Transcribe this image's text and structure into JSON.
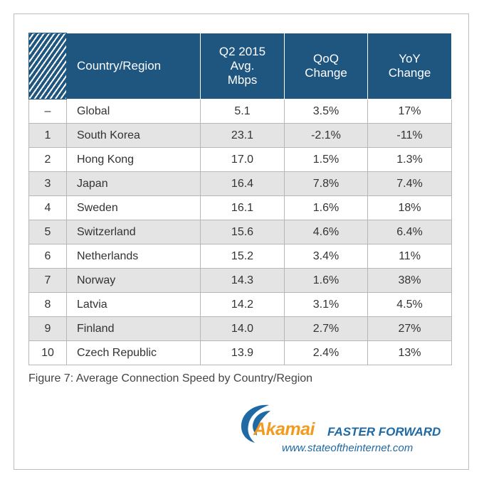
{
  "table": {
    "headers": {
      "country": "Country/Region",
      "speed": [
        "Q2 2015",
        "Avg.",
        "Mbps"
      ],
      "qoq": [
        "QoQ",
        "Change"
      ],
      "yoy": [
        "YoY",
        "Change"
      ]
    },
    "rows": [
      {
        "rank": "–",
        "country": "Global",
        "speed": "5.1",
        "qoq": "3.5%",
        "yoy": "17%"
      },
      {
        "rank": "1",
        "country": "South Korea",
        "speed": "23.1",
        "qoq": "-2.1%",
        "yoy": "-11%"
      },
      {
        "rank": "2",
        "country": "Hong Kong",
        "speed": "17.0",
        "qoq": "1.5%",
        "yoy": "1.3%"
      },
      {
        "rank": "3",
        "country": "Japan",
        "speed": "16.4",
        "qoq": "7.8%",
        "yoy": "7.4%"
      },
      {
        "rank": "4",
        "country": "Sweden",
        "speed": "16.1",
        "qoq": "1.6%",
        "yoy": "18%"
      },
      {
        "rank": "5",
        "country": "Switzerland",
        "speed": "15.6",
        "qoq": "4.6%",
        "yoy": "6.4%"
      },
      {
        "rank": "6",
        "country": "Netherlands",
        "speed": "15.2",
        "qoq": "3.4%",
        "yoy": "11%"
      },
      {
        "rank": "7",
        "country": "Norway",
        "speed": "14.3",
        "qoq": "1.6%",
        "yoy": "38%"
      },
      {
        "rank": "8",
        "country": "Latvia",
        "speed": "14.2",
        "qoq": "3.1%",
        "yoy": "4.5%"
      },
      {
        "rank": "9",
        "country": "Finland",
        "speed": "14.0",
        "qoq": "2.7%",
        "yoy": "27%"
      },
      {
        "rank": "10",
        "country": "Czech Republic",
        "speed": "13.9",
        "qoq": "2.4%",
        "yoy": "13%"
      }
    ]
  },
  "caption": "Figure 7: Average Connection Speed by Country/Region",
  "logo": {
    "brand": "Akamai",
    "tagline": "FASTER FORWARD",
    "url": "www.stateoftheinternet.com"
  },
  "colors": {
    "header_bg": "#1f5680",
    "shaded_row": "#e4e4e4",
    "brand_orange": "#f39a1e",
    "brand_blue": "#1f6aa5"
  },
  "chart_data": {
    "type": "table",
    "title": "Figure 7: Average Connection Speed by Country/Region",
    "columns": [
      "",
      "Country/Region",
      "Q2 2015 Avg. Mbps",
      "QoQ Change",
      "YoY Change"
    ],
    "rows": [
      [
        "–",
        "Global",
        5.1,
        "3.5%",
        "17%"
      ],
      [
        "1",
        "South Korea",
        23.1,
        "-2.1%",
        "-11%"
      ],
      [
        "2",
        "Hong Kong",
        17.0,
        "1.5%",
        "1.3%"
      ],
      [
        "3",
        "Japan",
        16.4,
        "7.8%",
        "7.4%"
      ],
      [
        "4",
        "Sweden",
        16.1,
        "1.6%",
        "18%"
      ],
      [
        "5",
        "Switzerland",
        15.6,
        "4.6%",
        "6.4%"
      ],
      [
        "6",
        "Netherlands",
        15.2,
        "3.4%",
        "11%"
      ],
      [
        "7",
        "Norway",
        14.3,
        "1.6%",
        "38%"
      ],
      [
        "8",
        "Latvia",
        14.2,
        "3.1%",
        "4.5%"
      ],
      [
        "9",
        "Finland",
        14.0,
        "2.7%",
        "27%"
      ],
      [
        "10",
        "Czech Republic",
        13.9,
        "2.4%",
        "13%"
      ]
    ]
  }
}
